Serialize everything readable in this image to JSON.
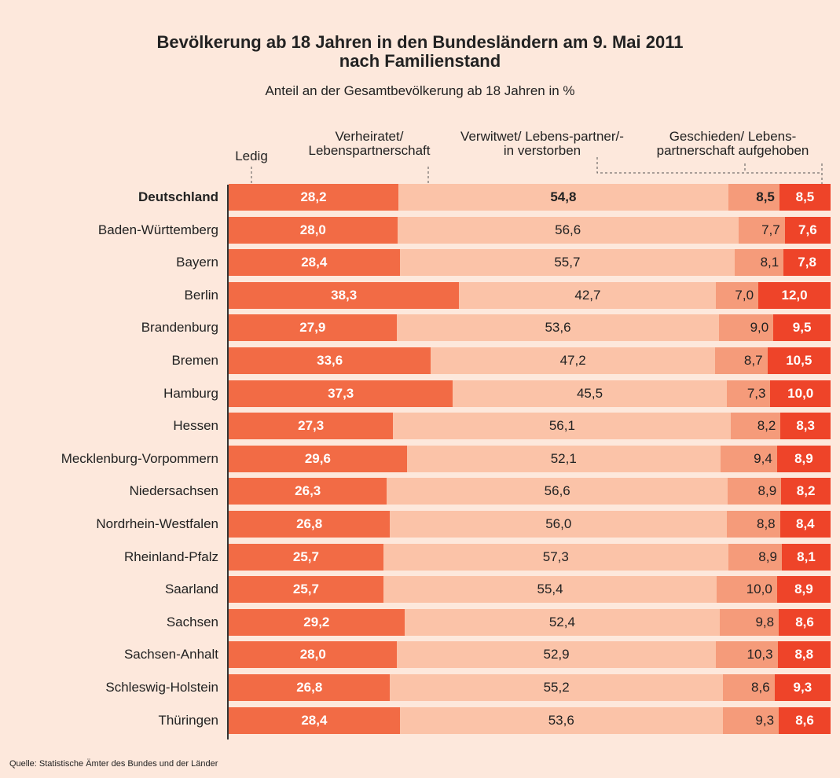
{
  "chart_data": {
    "type": "stacked-bar",
    "title": "Bevölkerung ab 18 Jahren in den Bundesländern am 9. Mai 2011 nach Familienstand",
    "subtitle": "Anteil an der Gesamtbevölkerung ab 18 Jahren in %",
    "source": "Quelle: Statistische Ämter des Bundes und der Länder",
    "categories": [
      "Deutschland",
      "Baden-Württemberg",
      "Bayern",
      "Berlin",
      "Brandenburg",
      "Bremen",
      "Hamburg",
      "Hessen",
      "Mecklenburg-Vorpommern",
      "Niedersachsen",
      "Nordrhein-Westfalen",
      "Rheinland-Pfalz",
      "Saarland",
      "Sachsen",
      "Sachsen-Anhalt",
      "Schleswig-Holstein",
      "Thüringen"
    ],
    "series": [
      {
        "name": "Ledig",
        "color": "#f26b45",
        "values": [
          28.2,
          28.0,
          28.4,
          38.3,
          27.9,
          33.6,
          37.3,
          27.3,
          29.6,
          26.3,
          26.8,
          25.7,
          25.7,
          29.2,
          28.0,
          26.8,
          28.4
        ],
        "value_labels": [
          "28,2",
          "28,0",
          "28,4",
          "38,3",
          "27,9",
          "33,6",
          "37,3",
          "27,3",
          "29,6",
          "26,3",
          "26,8",
          "25,7",
          "25,7",
          "29,2",
          "28,0",
          "26,8",
          "28,4"
        ]
      },
      {
        "name": "Verheiratet/ Lebenspartnerschaft",
        "color": "#fbc3a8",
        "values": [
          54.8,
          56.6,
          55.7,
          42.7,
          53.6,
          47.2,
          45.5,
          56.1,
          52.1,
          56.6,
          56.0,
          57.3,
          55.4,
          52.4,
          52.9,
          55.2,
          53.6
        ],
        "value_labels": [
          "54,8",
          "56,6",
          "55,7",
          "42,7",
          "53,6",
          "47,2",
          "45,5",
          "56,1",
          "52,1",
          "56,6",
          "56,0",
          "57,3",
          "55,4",
          "52,4",
          "52,9",
          "55,2",
          "53,6"
        ]
      },
      {
        "name": "Verwitwet/ Lebens-partner/-in verstorben",
        "color": "#f59b7a",
        "values": [
          8.5,
          7.7,
          8.1,
          7.0,
          9.0,
          8.7,
          7.3,
          8.2,
          9.4,
          8.9,
          8.8,
          8.9,
          10.0,
          9.8,
          10.3,
          8.6,
          9.3
        ],
        "value_labels": [
          "8,5",
          "7,7",
          "8,1",
          "7,0",
          "9,0",
          "8,7",
          "7,3",
          "8,2",
          "9,4",
          "8,9",
          "8,8",
          "8,9",
          "10,0",
          "9,8",
          "10,3",
          "8,6",
          "9,3"
        ]
      },
      {
        "name": "Geschieden/ Lebens-partnerschaft aufgehoben",
        "color": "#ee4429",
        "values": [
          8.5,
          7.6,
          7.8,
          12.0,
          9.5,
          10.5,
          10.0,
          8.3,
          8.9,
          8.2,
          8.4,
          8.1,
          8.9,
          8.6,
          8.8,
          9.3,
          8.6
        ],
        "value_labels": [
          "8,5",
          "7,6",
          "7,8",
          "12,0",
          "9,5",
          "10,5",
          "10,0",
          "8,3",
          "8,9",
          "8,2",
          "8,4",
          "8,1",
          "8,9",
          "8,6",
          "8,8",
          "9,3",
          "8,6"
        ]
      }
    ]
  }
}
